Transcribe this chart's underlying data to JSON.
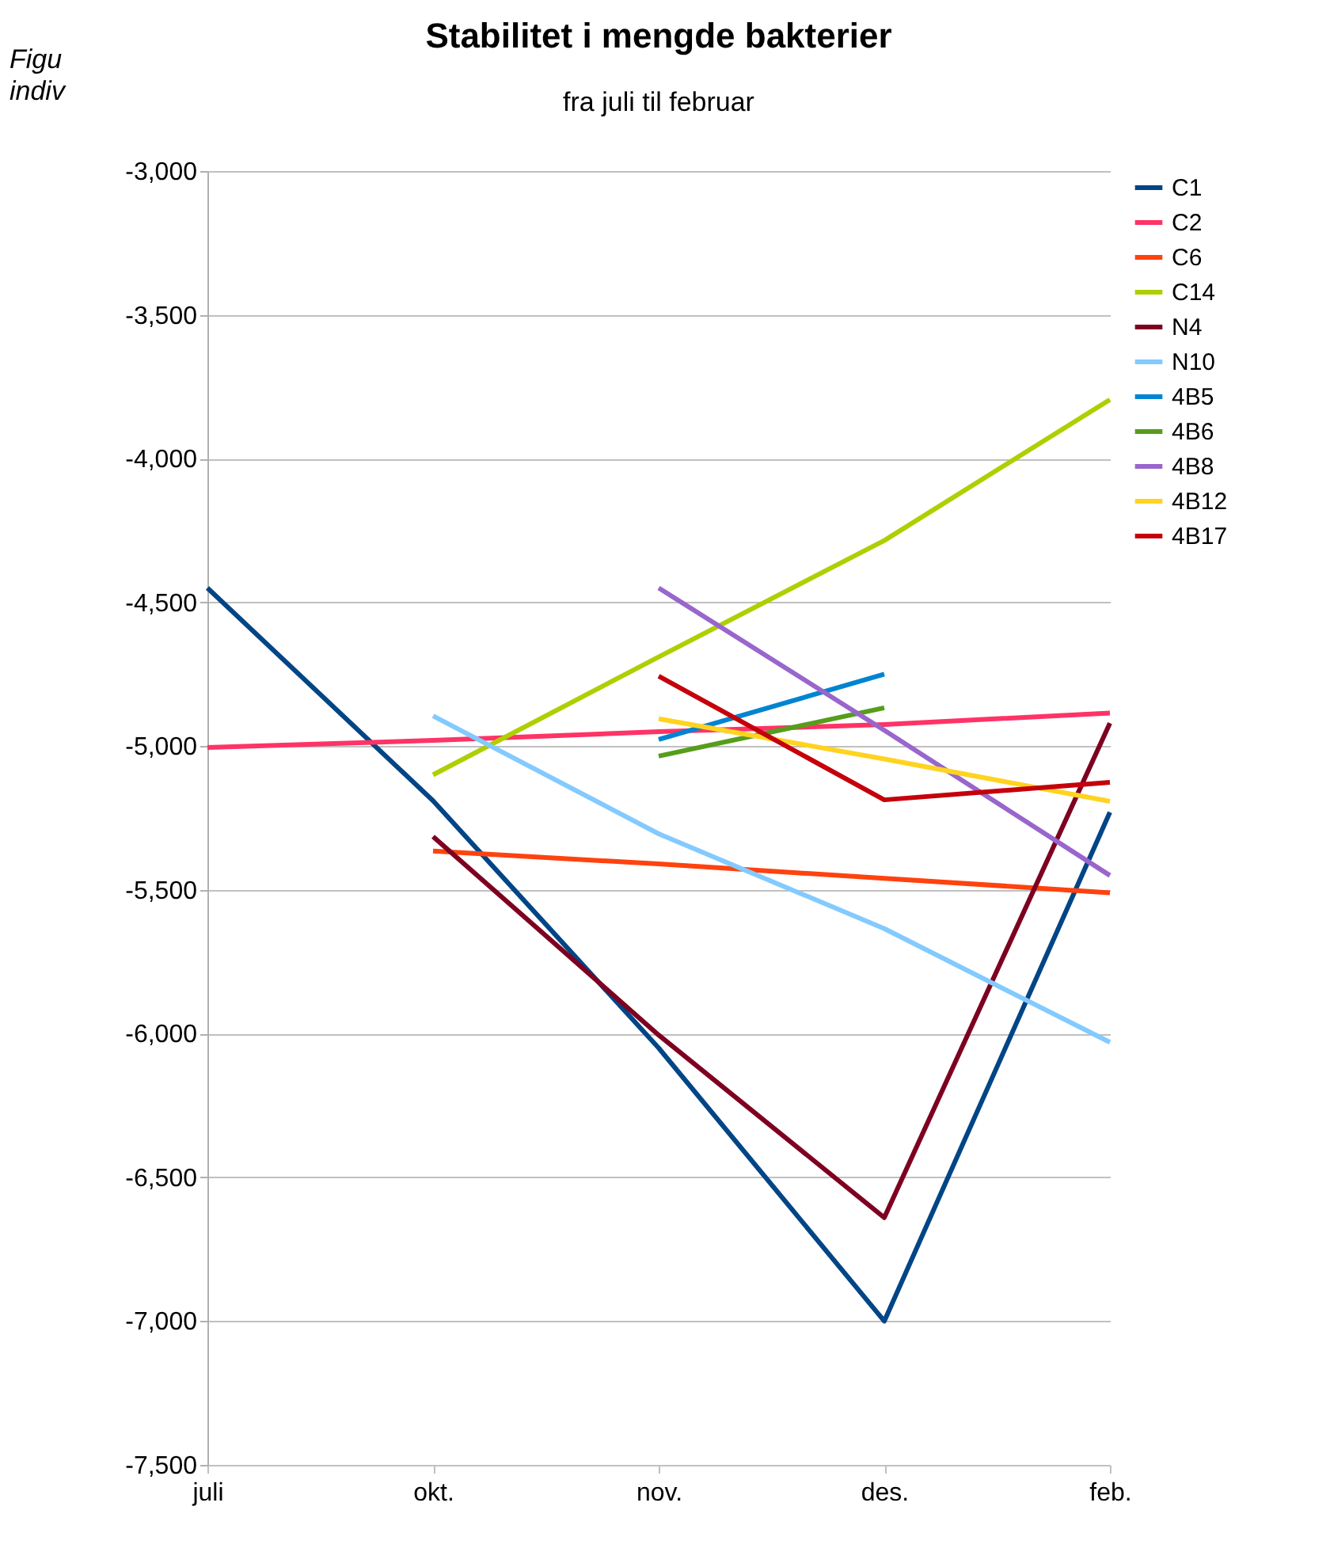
{
  "chart_data": {
    "type": "line",
    "title": "Stabilitet i mengde bakterier",
    "subtitle": "fra juli til februar",
    "annotations": [
      "Figu",
      "indiv"
    ],
    "categories": [
      "juli",
      "okt.",
      "nov.",
      "des.",
      "feb."
    ],
    "ylim": [
      -7500,
      -3000
    ],
    "yticks": [
      {
        "value": -7500,
        "label": "-7,500"
      },
      {
        "value": -7000,
        "label": "-7,000"
      },
      {
        "value": -6500,
        "label": "-6,500"
      },
      {
        "value": -6000,
        "label": "-6,000"
      },
      {
        "value": -5500,
        "label": "-5,500"
      },
      {
        "value": -5000,
        "label": "-5,000"
      },
      {
        "value": -4500,
        "label": "-4,500"
      },
      {
        "value": -4000,
        "label": "-4,000"
      },
      {
        "value": -3500,
        "label": "-3,500"
      },
      {
        "value": -3000,
        "label": "-3,000"
      }
    ],
    "grid": "y",
    "legend": "right",
    "series": [
      {
        "name": "C1",
        "color": "#004586",
        "values": [
          -4450,
          -5190,
          -6050,
          -7000,
          -5230
        ]
      },
      {
        "name": "C2",
        "color": "#ff3366",
        "values": [
          -5005,
          -4980,
          -4950,
          -4925,
          -4885
        ]
      },
      {
        "name": "C6",
        "color": "#ff420e",
        "values": [
          null,
          -5365,
          -5410,
          -5460,
          -5510
        ]
      },
      {
        "name": "C14",
        "color": "#aecf00",
        "values": [
          null,
          -5100,
          -4690,
          -4285,
          -3795
        ]
      },
      {
        "name": "N4",
        "color": "#7e0021",
        "values": [
          null,
          -5315,
          -6005,
          -6640,
          -4920
        ]
      },
      {
        "name": "N10",
        "color": "#83caff",
        "values": [
          null,
          -4895,
          -5305,
          -5635,
          -6030
        ]
      },
      {
        "name": "4B5",
        "color": "#0084d1",
        "values": [
          null,
          null,
          -4977,
          -4750,
          null
        ]
      },
      {
        "name": "4B6",
        "color": "#579d1c",
        "values": [
          null,
          null,
          -5035,
          -4867,
          null
        ]
      },
      {
        "name": "4B8",
        "color": "#9966cc",
        "values": [
          null,
          null,
          -4450,
          -4945,
          -5450
        ]
      },
      {
        "name": "4B12",
        "color": "#ffd320",
        "values": [
          null,
          null,
          -4905,
          -5045,
          -5192
        ]
      },
      {
        "name": "4B17",
        "color": "#c5000b",
        "values": [
          null,
          null,
          -4757,
          -5187,
          -5126
        ]
      }
    ]
  }
}
